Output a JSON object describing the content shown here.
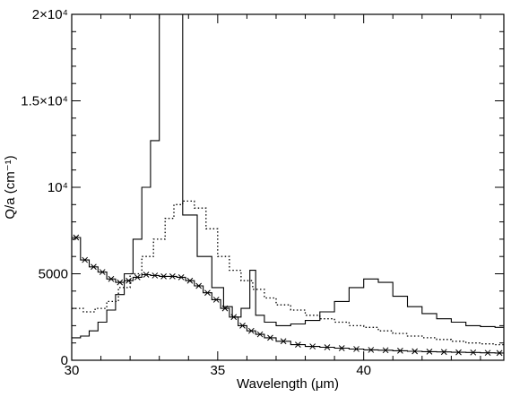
{
  "chart_data": {
    "type": "line",
    "xlabel": "Wavelength (μm)",
    "ylabel": "Q/a (cm⁻¹)",
    "xlim": [
      30,
      44.8
    ],
    "ylim": [
      0,
      20000
    ],
    "grid": false,
    "x_ticks": [
      {
        "value": 30,
        "label": "30"
      },
      {
        "value": 35,
        "label": "35"
      },
      {
        "value": 40,
        "label": "40"
      }
    ],
    "y_ticks": [
      {
        "value": 0,
        "label": "0"
      },
      {
        "value": 5000,
        "label": "5000"
      },
      {
        "value": 10000,
        "label": "10⁴"
      },
      {
        "value": 15000,
        "label": "1.5×10⁴"
      },
      {
        "value": 20000,
        "label": "2×10⁴"
      }
    ],
    "series": [
      {
        "style": "solid",
        "markers": false,
        "x": [
          30.0,
          30.3,
          30.6,
          30.9,
          31.2,
          31.5,
          31.8,
          32.1,
          32.4,
          32.7,
          33.0,
          33.35,
          33.8,
          34.3,
          34.8,
          35.2,
          35.5,
          35.8,
          36.1,
          36.3,
          36.6,
          37.0,
          37.5,
          38.0,
          38.5,
          39.0,
          39.5,
          40.0,
          40.5,
          41.0,
          41.5,
          42.0,
          42.5,
          43.0,
          43.5,
          44.0,
          44.5
        ],
        "y": [
          1300,
          1400,
          1700,
          2200,
          2900,
          3800,
          5000,
          7000,
          10000,
          12700,
          20000,
          20000,
          8400,
          6000,
          4200,
          3100,
          2500,
          3000,
          5200,
          2600,
          2200,
          2000,
          2100,
          2300,
          2800,
          3400,
          4200,
          4700,
          4500,
          3700,
          3100,
          2700,
          2400,
          2200,
          2000,
          1950,
          1900
        ]
      },
      {
        "style": "dotted",
        "markers": false,
        "x": [
          30.0,
          30.4,
          30.8,
          31.2,
          31.6,
          32.0,
          32.4,
          32.8,
          33.2,
          33.5,
          33.8,
          34.2,
          34.6,
          35.0,
          35.4,
          35.8,
          36.2,
          36.6,
          37.0,
          37.5,
          38.0,
          38.5,
          39.0,
          39.5,
          40.0,
          40.5,
          41.0,
          41.5,
          42.0,
          42.5,
          43.0,
          43.5,
          44.0,
          44.5
        ],
        "y": [
          3000,
          2800,
          3000,
          3400,
          4200,
          5000,
          6000,
          7000,
          8200,
          9000,
          9200,
          8800,
          7600,
          6000,
          5200,
          4600,
          4100,
          3600,
          3200,
          2900,
          2600,
          2400,
          2200,
          2000,
          1900,
          1700,
          1550,
          1400,
          1300,
          1200,
          1100,
          1000,
          950,
          900
        ]
      },
      {
        "style": "solid",
        "markers": true,
        "x": [
          30.0,
          30.3,
          30.6,
          30.9,
          31.2,
          31.5,
          31.8,
          32.1,
          32.4,
          32.7,
          33.0,
          33.3,
          33.6,
          33.9,
          34.2,
          34.5,
          34.8,
          35.1,
          35.4,
          35.7,
          36.0,
          36.3,
          36.6,
          37.0,
          37.5,
          38.0,
          38.5,
          39.0,
          39.5,
          40.0,
          40.5,
          41.0,
          41.5,
          42.0,
          42.5,
          43.0,
          43.5,
          44.0,
          44.5
        ],
        "y": [
          7100,
          5800,
          5400,
          5100,
          4700,
          4500,
          4600,
          4800,
          4950,
          4900,
          4850,
          4850,
          4800,
          4600,
          4300,
          3900,
          3500,
          3000,
          2500,
          2000,
          1700,
          1500,
          1300,
          1100,
          900,
          800,
          750,
          700,
          650,
          600,
          580,
          550,
          520,
          500,
          480,
          460,
          450,
          430,
          420
        ]
      }
    ]
  }
}
